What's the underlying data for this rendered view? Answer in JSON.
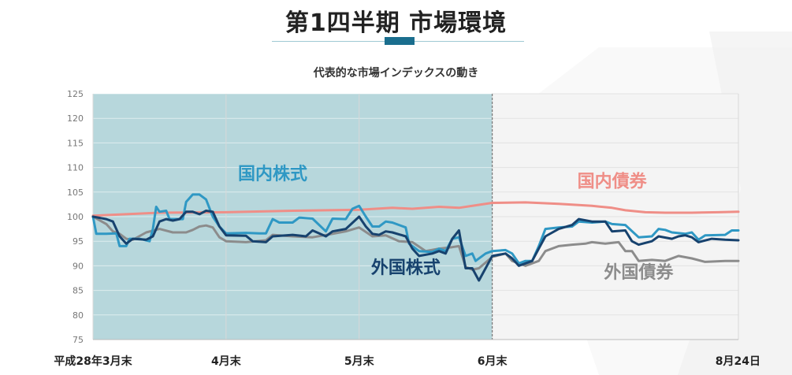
{
  "header": {
    "title": "第1四半期 市場環境",
    "subtitle": "代表的な市場インデックスの動き"
  },
  "colors": {
    "shade": "#b7d7dc",
    "right_shade": "#f4f4f4",
    "divider": "#777777",
    "accent": "#1a6e8e"
  },
  "chart_data": {
    "type": "line",
    "title": "代表的な市場インデックスの動き",
    "xlabel": "",
    "ylabel": "",
    "xlim": [
      0,
      97
    ],
    "ylim": [
      75,
      125
    ],
    "yticks": [
      75,
      80,
      85,
      90,
      95,
      100,
      105,
      110,
      115,
      120,
      125
    ],
    "x_ticks": [
      {
        "x": 0,
        "label": "平成28年3月末"
      },
      {
        "x": 20,
        "label": "4月末"
      },
      {
        "x": 40,
        "label": "5月末"
      },
      {
        "x": 60,
        "label": "6月末"
      },
      {
        "x": 97,
        "label": "8月24日"
      }
    ],
    "grid": true,
    "shaded_region": [
      0,
      60
    ],
    "divider_x": 60,
    "series": [
      {
        "name": "国内債券",
        "color": "#ef8e87",
        "label_pos": [
          78,
          106
        ],
        "points": [
          [
            0,
            100.2
          ],
          [
            5,
            100.5
          ],
          [
            10,
            100.8
          ],
          [
            20,
            100.9
          ],
          [
            30,
            101.2
          ],
          [
            40,
            101.4
          ],
          [
            45,
            101.8
          ],
          [
            48,
            101.6
          ],
          [
            52,
            102.0
          ],
          [
            55,
            101.8
          ],
          [
            58,
            102.4
          ],
          [
            60,
            102.8
          ],
          [
            65,
            102.9
          ],
          [
            70,
            102.6
          ],
          [
            75,
            102.2
          ],
          [
            78,
            101.8
          ],
          [
            80,
            101.3
          ],
          [
            83,
            100.9
          ],
          [
            86,
            100.8
          ],
          [
            90,
            100.8
          ],
          [
            94,
            100.9
          ],
          [
            97,
            101.0
          ]
        ]
      },
      {
        "name": "国内株式",
        "color": "#2f98c4",
        "label_pos": [
          27,
          107.5
        ],
        "points": [
          [
            0,
            100.0
          ],
          [
            0.5,
            96.5
          ],
          [
            2,
            96.5
          ],
          [
            3.5,
            96.6
          ],
          [
            4,
            94.0
          ],
          [
            5,
            94.0
          ],
          [
            5.5,
            95.5
          ],
          [
            7,
            95.5
          ],
          [
            8.5,
            95.0
          ],
          [
            9,
            97.5
          ],
          [
            9.5,
            102.0
          ],
          [
            10,
            101.0
          ],
          [
            11,
            101.2
          ],
          [
            11.5,
            99.5
          ],
          [
            13.5,
            99.5
          ],
          [
            14,
            103.0
          ],
          [
            15,
            104.5
          ],
          [
            16,
            104.5
          ],
          [
            17,
            103.5
          ],
          [
            18,
            100.0
          ],
          [
            19,
            98.0
          ],
          [
            20,
            96.6
          ],
          [
            23,
            96.7
          ],
          [
            25,
            96.6
          ],
          [
            26,
            96.6
          ],
          [
            27,
            99.5
          ],
          [
            28,
            98.8
          ],
          [
            30,
            98.8
          ],
          [
            31,
            99.8
          ],
          [
            33,
            99.6
          ],
          [
            35,
            97.0
          ],
          [
            36,
            99.6
          ],
          [
            38,
            99.5
          ],
          [
            39,
            101.6
          ],
          [
            40,
            102.2
          ],
          [
            41,
            100.0
          ],
          [
            42,
            98.0
          ],
          [
            43,
            98.0
          ],
          [
            44,
            99.0
          ],
          [
            45,
            98.8
          ],
          [
            47,
            97.8
          ],
          [
            47.5,
            94.5
          ],
          [
            49,
            93.0
          ],
          [
            51,
            92.8
          ],
          [
            52,
            93.5
          ],
          [
            53,
            93.0
          ],
          [
            54,
            95.5
          ],
          [
            55,
            95.8
          ],
          [
            56,
            92.0
          ],
          [
            57,
            92.5
          ],
          [
            57.5,
            91.0
          ],
          [
            59,
            92.5
          ],
          [
            60,
            93.0
          ],
          [
            62,
            93.2
          ],
          [
            63,
            92.5
          ],
          [
            64,
            90.5
          ],
          [
            65,
            91.0
          ],
          [
            66,
            91.0
          ],
          [
            67,
            94.0
          ],
          [
            68,
            97.5
          ],
          [
            70,
            97.8
          ],
          [
            72,
            98.0
          ],
          [
            73,
            99.0
          ],
          [
            75,
            98.8
          ],
          [
            77,
            99.0
          ],
          [
            78,
            98.5
          ],
          [
            80,
            98.3
          ],
          [
            82,
            95.8
          ],
          [
            84,
            96.0
          ],
          [
            85,
            97.5
          ],
          [
            86,
            97.3
          ],
          [
            87,
            96.8
          ],
          [
            89,
            96.5
          ],
          [
            90,
            96.8
          ],
          [
            91,
            95.3
          ],
          [
            92,
            96.2
          ],
          [
            95,
            96.3
          ],
          [
            96,
            97.2
          ],
          [
            97,
            97.2
          ]
        ]
      },
      {
        "name": "外国株式",
        "color": "#17426e",
        "label_pos": [
          47,
          88.5
        ],
        "points": [
          [
            0,
            100.0
          ],
          [
            2,
            99.5
          ],
          [
            3,
            99.0
          ],
          [
            4,
            96.0
          ],
          [
            5,
            94.5
          ],
          [
            6,
            95.5
          ],
          [
            8,
            95.3
          ],
          [
            9,
            96.0
          ],
          [
            10,
            99.0
          ],
          [
            11,
            99.5
          ],
          [
            12,
            99.2
          ],
          [
            13,
            99.5
          ],
          [
            14,
            101.0
          ],
          [
            15,
            101.0
          ],
          [
            16,
            100.5
          ],
          [
            17,
            101.2
          ],
          [
            18,
            101.0
          ],
          [
            19,
            98.0
          ],
          [
            20,
            96.2
          ],
          [
            23,
            96.1
          ],
          [
            24,
            95.0
          ],
          [
            26,
            94.8
          ],
          [
            27,
            96.0
          ],
          [
            30,
            96.3
          ],
          [
            32,
            96.0
          ],
          [
            33,
            97.2
          ],
          [
            35,
            96.0
          ],
          [
            36,
            97.0
          ],
          [
            38,
            97.5
          ],
          [
            40,
            100.0
          ],
          [
            41,
            98.0
          ],
          [
            42,
            96.5
          ],
          [
            43,
            96.3
          ],
          [
            44,
            97.0
          ],
          [
            45,
            96.8
          ],
          [
            47,
            96.0
          ],
          [
            48,
            93.5
          ],
          [
            49,
            92.0
          ],
          [
            51,
            92.5
          ],
          [
            52,
            93.0
          ],
          [
            53,
            92.5
          ],
          [
            54,
            95.5
          ],
          [
            55,
            97.2
          ],
          [
            56,
            89.5
          ],
          [
            57,
            89.5
          ],
          [
            58,
            87.0
          ],
          [
            59,
            89.5
          ],
          [
            60,
            92.0
          ],
          [
            62,
            92.5
          ],
          [
            63,
            91.5
          ],
          [
            64,
            90.0
          ],
          [
            65,
            90.5
          ],
          [
            66,
            91.0
          ],
          [
            67,
            93.5
          ],
          [
            68,
            96.0
          ],
          [
            70,
            97.5
          ],
          [
            72,
            98.3
          ],
          [
            73,
            99.5
          ],
          [
            75,
            99.0
          ],
          [
            77,
            99.0
          ],
          [
            78,
            97.0
          ],
          [
            80,
            97.2
          ],
          [
            81,
            95.0
          ],
          [
            82,
            94.3
          ],
          [
            84,
            95.0
          ],
          [
            85,
            96.0
          ],
          [
            87,
            95.5
          ],
          [
            88,
            96.0
          ],
          [
            89,
            96.2
          ],
          [
            90,
            95.8
          ],
          [
            91,
            94.8
          ],
          [
            93,
            95.5
          ],
          [
            95,
            95.3
          ],
          [
            97,
            95.2
          ]
        ]
      },
      {
        "name": "外国債券",
        "color": "#8c8c8c",
        "label_pos": [
          82,
          87.5
        ],
        "points": [
          [
            0,
            100.0
          ],
          [
            2,
            98.5
          ],
          [
            3,
            97.0
          ],
          [
            4,
            96.5
          ],
          [
            5,
            95.5
          ],
          [
            6,
            95.3
          ],
          [
            8,
            96.8
          ],
          [
            10,
            97.5
          ],
          [
            12,
            96.8
          ],
          [
            14,
            96.8
          ],
          [
            15,
            97.3
          ],
          [
            16,
            98.0
          ],
          [
            17,
            98.2
          ],
          [
            18,
            97.8
          ],
          [
            19,
            95.8
          ],
          [
            20,
            95.0
          ],
          [
            23,
            94.8
          ],
          [
            26,
            95.2
          ],
          [
            27,
            96.3
          ],
          [
            30,
            96.0
          ],
          [
            33,
            95.8
          ],
          [
            36,
            96.5
          ],
          [
            38,
            97.0
          ],
          [
            40,
            97.8
          ],
          [
            42,
            96.0
          ],
          [
            44,
            96.2
          ],
          [
            46,
            95.0
          ],
          [
            48,
            94.8
          ],
          [
            50,
            93.0
          ],
          [
            52,
            93.5
          ],
          [
            54,
            93.8
          ],
          [
            55,
            94.0
          ],
          [
            56,
            89.8
          ],
          [
            57,
            89.2
          ],
          [
            58,
            89.5
          ],
          [
            60,
            91.8
          ],
          [
            62,
            92.5
          ],
          [
            63,
            91.0
          ],
          [
            65,
            90.0
          ],
          [
            67,
            91.0
          ],
          [
            68,
            93.0
          ],
          [
            70,
            94.0
          ],
          [
            72,
            94.3
          ],
          [
            74,
            94.5
          ],
          [
            75,
            94.8
          ],
          [
            77,
            94.5
          ],
          [
            79,
            94.8
          ],
          [
            80,
            93.0
          ],
          [
            81,
            93.0
          ],
          [
            82,
            91.0
          ],
          [
            84,
            91.2
          ],
          [
            86,
            91.0
          ],
          [
            88,
            92.0
          ],
          [
            90,
            91.5
          ],
          [
            92,
            90.8
          ],
          [
            95,
            91.0
          ],
          [
            97,
            91.0
          ]
        ]
      }
    ]
  }
}
